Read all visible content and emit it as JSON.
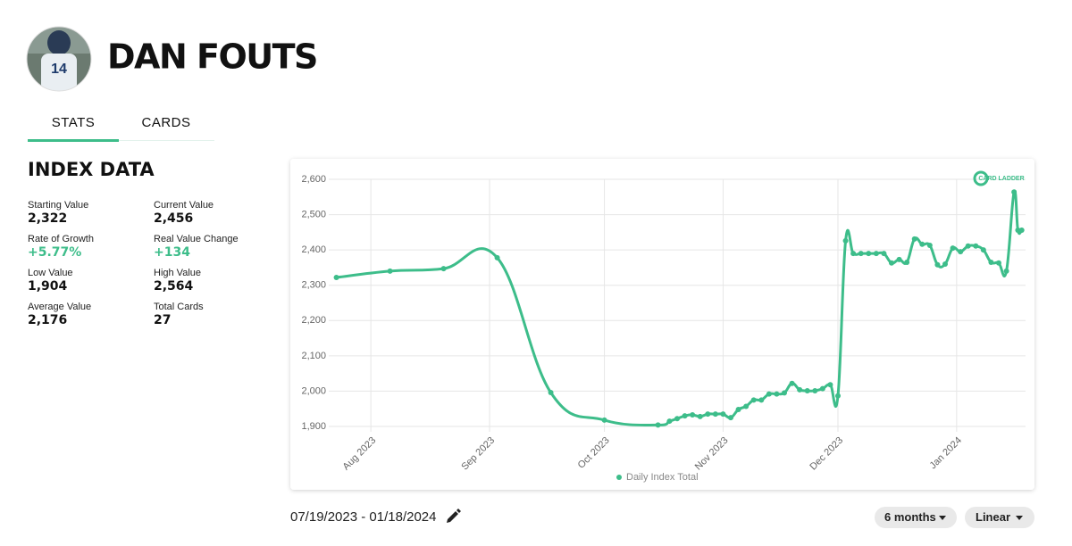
{
  "header": {
    "player_name": "DAN FOUTS"
  },
  "tabs": [
    "STATS",
    "CARDS"
  ],
  "index_data": {
    "title": "INDEX DATA",
    "stats": [
      {
        "label": "Starting Value",
        "value": "2,322"
      },
      {
        "label": "Current Value",
        "value": "2,456"
      },
      {
        "label": "Rate of Growth",
        "value": "+5.77%",
        "color": "#3dbd8a"
      },
      {
        "label": "Real Value Change",
        "value": "+134",
        "color": "#3dbd8a"
      },
      {
        "label": "Low Value",
        "value": "1,904"
      },
      {
        "label": "High Value",
        "value": "2,564"
      },
      {
        "label": "Average Value",
        "value": "2,176"
      },
      {
        "label": "Total Cards",
        "value": "27"
      }
    ]
  },
  "chart_data": {
    "type": "line",
    "watermark": "CARD LADDER",
    "x": [
      4,
      18,
      32,
      46,
      60,
      74,
      88,
      91,
      93,
      95,
      97,
      99,
      101,
      103,
      105,
      107,
      109,
      111,
      113,
      115,
      117,
      119,
      121,
      123,
      125,
      127,
      129,
      131,
      133,
      135,
      137,
      139,
      141,
      143,
      145,
      147,
      149,
      151,
      153,
      155,
      157,
      159,
      161,
      163,
      165,
      167,
      169,
      171,
      173,
      175,
      177,
      179,
      181,
      182,
      183
    ],
    "series": [
      {
        "name": "Daily Index Total",
        "color": "#3dbd8a",
        "values": [
          2322,
          2340,
          2347,
          2378,
          1996,
          1918,
          1904,
          1915,
          1922,
          1930,
          1933,
          1928,
          1935,
          1935,
          1935,
          1925,
          1948,
          1957,
          1975,
          1975,
          1992,
          1992,
          1995,
          2022,
          2004,
          2001,
          2001,
          2007,
          2018,
          1987,
          2426,
          2390,
          2390,
          2390,
          2390,
          2390,
          2363,
          2373,
          2365,
          2431,
          2416,
          2413,
          2358,
          2360,
          2405,
          2395,
          2411,
          2411,
          2400,
          2365,
          2363,
          2340,
          2564,
          2456,
          2456
        ]
      }
    ],
    "xlim": [
      2,
      184
    ],
    "xticks": [
      {
        "value": 13,
        "label": "Aug 2023"
      },
      {
        "value": 44,
        "label": "Sep 2023"
      },
      {
        "value": 74,
        "label": "Oct 2023"
      },
      {
        "value": 105,
        "label": "Nov 2023"
      },
      {
        "value": 135,
        "label": "Dec 2023"
      },
      {
        "value": 166,
        "label": "Jan 2024"
      }
    ],
    "ylim": [
      1900,
      2600
    ],
    "yticks": [
      {
        "value": 1900,
        "label": "1,900"
      },
      {
        "value": 2000,
        "label": "2,000"
      },
      {
        "value": 2100,
        "label": "2,100"
      },
      {
        "value": 2200,
        "label": "2,200"
      },
      {
        "value": 2300,
        "label": "2,300"
      },
      {
        "value": 2400,
        "label": "2,400"
      },
      {
        "value": 2500,
        "label": "2,500"
      },
      {
        "value": 2600,
        "label": "2,600"
      }
    ],
    "grid": true,
    "log_scale": false
  },
  "controls": {
    "date_range": "07/19/2023 - 01/18/2024",
    "period": "6 months",
    "scale": "Linear"
  }
}
